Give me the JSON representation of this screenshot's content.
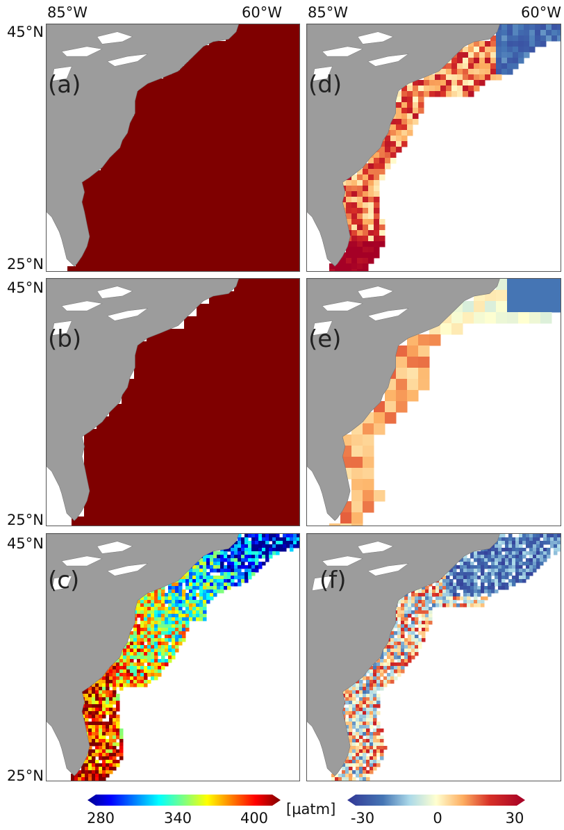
{
  "axes": {
    "lon_left": "85°W",
    "lon_right": "60°W",
    "lat_top": "45°N",
    "lat_bottom": "25°N"
  },
  "panels": [
    {
      "id": "a",
      "label": "(a)",
      "field": "full"
    },
    {
      "id": "b",
      "label": "(b)",
      "field": "coarse"
    },
    {
      "id": "c",
      "label": "(c)",
      "field": "shelf"
    },
    {
      "id": "d",
      "label": "(d)",
      "field": "shelf-diff"
    },
    {
      "id": "e",
      "label": "(e)",
      "field": "coarse-diff"
    },
    {
      "id": "f",
      "label": "(f)",
      "field": "fine-diff"
    }
  ],
  "colorbars": {
    "unit": "[µatm]",
    "absolute": {
      "ticks": [
        "280",
        "340",
        "400"
      ],
      "min": 280,
      "max": 400,
      "colormap": "jet"
    },
    "difference": {
      "ticks": [
        "-30",
        "0",
        "30"
      ],
      "min": -30,
      "max": 30,
      "colormap": "RdYlBu_r"
    }
  },
  "colors": {
    "land": "#9c9c9c",
    "lakes": "#ffffff",
    "frame": "#555555"
  }
}
